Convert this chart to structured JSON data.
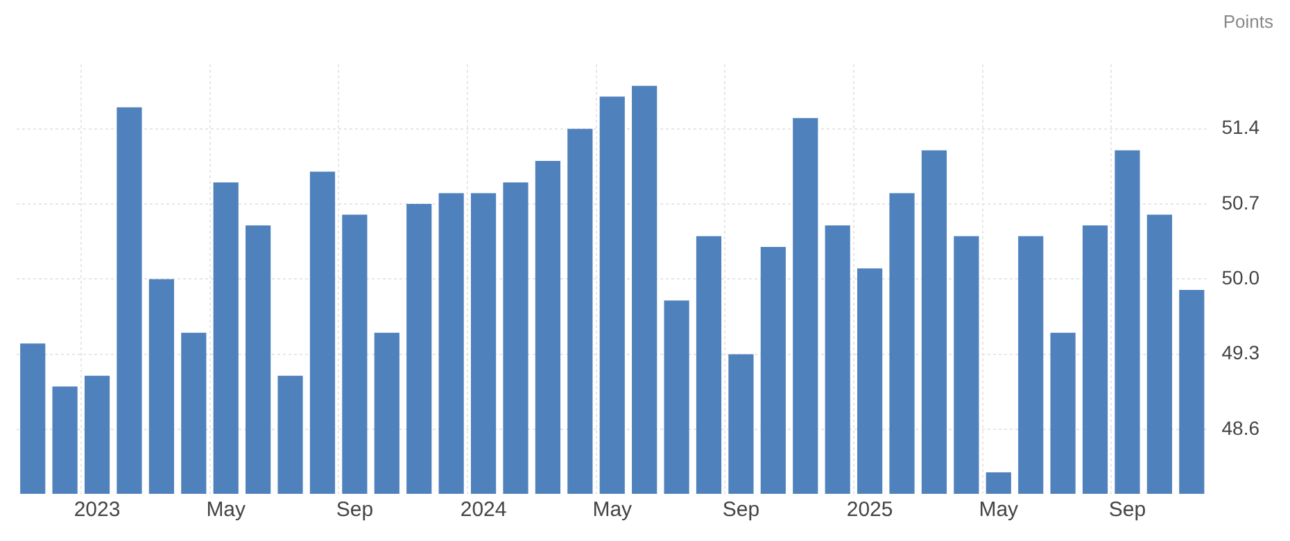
{
  "chart_data": {
    "type": "bar",
    "ylabel": "Points",
    "categories": [
      null,
      null,
      "2023",
      null,
      null,
      null,
      "May",
      null,
      null,
      null,
      "Sep",
      null,
      null,
      null,
      "2024",
      null,
      null,
      null,
      "May",
      null,
      null,
      null,
      "Sep",
      null,
      null,
      null,
      "2025",
      null,
      null,
      null,
      "May",
      null,
      null,
      null,
      "Sep",
      null,
      null
    ],
    "values": [
      49.4,
      49.0,
      49.1,
      51.6,
      50.0,
      49.5,
      50.9,
      50.5,
      49.1,
      51.0,
      50.6,
      49.5,
      50.7,
      50.8,
      50.8,
      50.9,
      51.1,
      51.4,
      51.7,
      51.8,
      49.8,
      50.4,
      49.3,
      50.3,
      51.5,
      50.5,
      50.1,
      50.8,
      51.2,
      50.4,
      48.2,
      50.4,
      49.5,
      50.5,
      51.2,
      50.6,
      49.9
    ],
    "color": "#4f81bd",
    "ylim": [
      48,
      52
    ],
    "yticks": [
      48.6,
      49.3,
      {
        "value": 50,
        "label": "50.0"
      },
      50.7,
      51.4
    ],
    "grid": true
  }
}
